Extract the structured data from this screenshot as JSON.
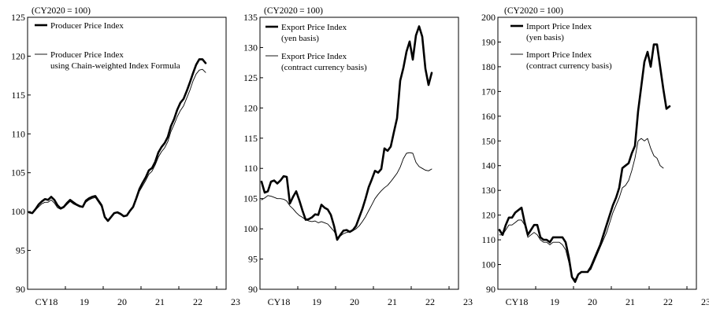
{
  "chart_data": [
    {
      "type": "line",
      "unit_label": "(CY2020 = 100)",
      "x_ticks": [
        "CY18",
        "19",
        "20",
        "21",
        "22",
        "23"
      ],
      "xlim": [
        2018,
        2023.25
      ],
      "ylim": [
        90,
        125
      ],
      "yticks": [
        90,
        95,
        100,
        105,
        110,
        115,
        120,
        125
      ],
      "legend_position": "top-left",
      "series": [
        {
          "name": "Producer Price Index",
          "legend_lines": [
            "Producer Price Index"
          ],
          "style": "bold",
          "values": [
            99.9,
            99.8,
            100.3,
            100.9,
            101.3,
            101.6,
            101.5,
            101.9,
            101.5,
            100.8,
            100.4,
            100.6,
            101.1,
            101.5,
            101.2,
            100.9,
            100.7,
            100.6,
            101.4,
            101.7,
            101.9,
            102.0,
            101.4,
            100.8,
            99.3,
            98.8,
            99.3,
            99.8,
            99.9,
            99.7,
            99.4,
            99.5,
            100.1,
            100.6,
            101.7,
            102.9,
            103.7,
            104.4,
            105.3,
            105.6,
            106.4,
            107.6,
            108.3,
            108.8,
            109.6,
            111.0,
            111.9,
            113.1,
            114.0,
            114.5,
            115.5,
            116.6,
            117.8,
            118.9,
            119.6,
            119.6,
            119.1
          ]
        },
        {
          "name": "Producer Price Index using Chain-weighted Index Formula",
          "legend_lines": [
            "Producer Price Index",
            "using Chain-weighted Index Formula"
          ],
          "style": "thin",
          "values": [
            99.9,
            99.8,
            100.2,
            100.6,
            101.0,
            101.2,
            101.2,
            101.5,
            101.1,
            100.5,
            100.3,
            100.5,
            100.9,
            101.3,
            101.0,
            100.8,
            100.6,
            100.6,
            101.2,
            101.5,
            101.7,
            101.8,
            101.2,
            100.6,
            99.3,
            98.9,
            99.4,
            99.8,
            99.8,
            99.6,
            99.4,
            99.5,
            100.0,
            100.5,
            101.5,
            102.6,
            103.3,
            104.0,
            104.8,
            105.2,
            106.0,
            107.0,
            107.7,
            108.2,
            109.0,
            110.3,
            111.2,
            112.2,
            113.0,
            113.6,
            114.6,
            115.6,
            116.8,
            117.7,
            118.2,
            118.3,
            117.9
          ]
        }
      ]
    },
    {
      "type": "line",
      "unit_label": "(CY2020 = 100)",
      "x_ticks": [
        "CY18",
        "19",
        "20",
        "21",
        "22",
        "23"
      ],
      "xlim": [
        2018,
        2023.25
      ],
      "ylim": [
        90,
        135
      ],
      "yticks": [
        90,
        95,
        100,
        105,
        110,
        115,
        120,
        125,
        130,
        135
      ],
      "legend_position": "top-left",
      "series": [
        {
          "name": "Export Price Index (yen basis)",
          "legend_lines": [
            "Export Price Index",
            "(yen basis)"
          ],
          "style": "bold",
          "values": [
            107.8,
            106.0,
            106.2,
            107.8,
            108.0,
            107.5,
            108.0,
            108.7,
            108.6,
            104.2,
            105.3,
            106.2,
            104.7,
            103.0,
            101.5,
            101.6,
            101.9,
            102.4,
            102.3,
            104.0,
            103.5,
            103.2,
            102.3,
            100.5,
            98.2,
            99.0,
            99.7,
            99.8,
            99.5,
            99.8,
            100.5,
            101.9,
            103.3,
            105.0,
            106.9,
            108.2,
            109.6,
            109.3,
            109.9,
            113.3,
            112.9,
            113.6,
            116.0,
            118.3,
            124.5,
            126.6,
            129.3,
            131.0,
            128.0,
            132.0,
            133.5,
            131.8,
            126.5,
            123.8,
            125.8
          ]
        },
        {
          "name": "Export Price Index (contract currency basis)",
          "legend_lines": [
            "Export Price Index",
            "(contract currency basis)"
          ],
          "style": "thin",
          "values": [
            104.8,
            105.1,
            105.5,
            105.4,
            105.2,
            105.0,
            105.0,
            104.9,
            104.6,
            103.8,
            103.3,
            102.7,
            102.2,
            101.9,
            101.5,
            101.3,
            101.2,
            101.3,
            101.0,
            101.2,
            101.0,
            100.8,
            100.2,
            99.6,
            98.6,
            98.8,
            99.2,
            99.4,
            99.5,
            99.7,
            100.0,
            100.5,
            101.2,
            102.0,
            103.0,
            104.0,
            105.0,
            105.7,
            106.3,
            106.8,
            107.2,
            107.8,
            108.5,
            109.2,
            110.2,
            111.6,
            112.5,
            112.6,
            112.5,
            111.0,
            110.3,
            110.0,
            109.7,
            109.6,
            109.9
          ]
        }
      ]
    },
    {
      "type": "line",
      "unit_label": "(CY2020 = 100)",
      "x_ticks": [
        "CY18",
        "19",
        "20",
        "21",
        "22",
        "23"
      ],
      "xlim": [
        2018,
        2023.25
      ],
      "ylim": [
        90,
        200
      ],
      "yticks": [
        90,
        100,
        110,
        120,
        130,
        140,
        150,
        160,
        170,
        180,
        190,
        200
      ],
      "legend_position": "top-left",
      "series": [
        {
          "name": "Import Price Index (yen basis)",
          "legend_lines": [
            "Import Price Index",
            "(yen basis)"
          ],
          "style": "bold",
          "values": [
            114,
            112,
            116,
            119,
            119,
            121,
            122,
            123,
            117,
            112,
            114,
            116,
            116,
            111,
            110,
            110,
            109,
            111,
            111,
            111,
            111,
            109,
            103,
            95,
            93,
            96,
            97,
            97,
            97,
            99,
            102,
            105,
            108,
            112,
            116,
            120,
            124,
            127,
            131,
            139,
            140,
            141,
            145,
            148,
            162,
            172,
            182,
            186,
            180,
            189,
            189,
            180,
            171,
            163,
            164
          ]
        },
        {
          "name": "Import Price Index (contract currency basis)",
          "legend_lines": [
            "Import Price Index",
            "(contract currency basis)"
          ],
          "style": "thin",
          "values": [
            112,
            112,
            114,
            116,
            116,
            117,
            118,
            118,
            116,
            111,
            112,
            113,
            112,
            110,
            109,
            109,
            108,
            109,
            109,
            109,
            108,
            106,
            101,
            95,
            94,
            96,
            97,
            97,
            97,
            98,
            101,
            104,
            107,
            110,
            113,
            117,
            121,
            124,
            127,
            131,
            132,
            134,
            138,
            143,
            150,
            151,
            150,
            151,
            147,
            144,
            143,
            140,
            139
          ]
        }
      ]
    }
  ]
}
